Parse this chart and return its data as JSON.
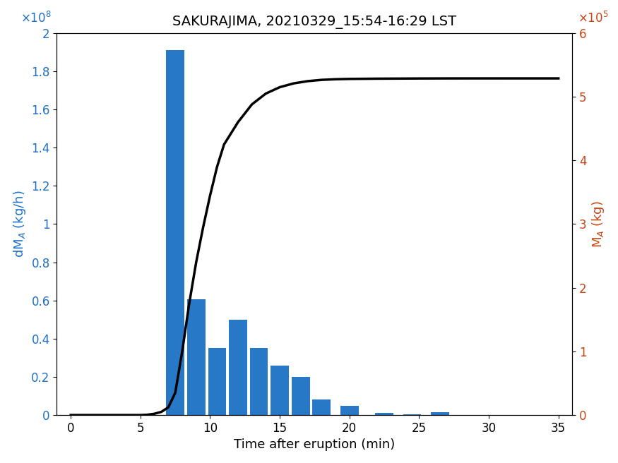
{
  "title": "SAKURAJIMA, 20210329_15:54-16:29 LST",
  "xlabel": "Time after eruption (min)",
  "ylabel_left": "dM$_A$ (kg/h)",
  "ylabel_right": "M$_A$ (kg)",
  "bar_centers": [
    7.5,
    9.0,
    10.5,
    12.0,
    13.5,
    15.0,
    16.5,
    18.0,
    20.0,
    22.5,
    24.5,
    26.5,
    34.0
  ],
  "bar_heights": [
    191000000.0,
    60500000.0,
    35000000.0,
    50000000.0,
    35000000.0,
    26000000.0,
    20000000.0,
    8000000.0,
    5000000.0,
    1200000.0,
    500000.0,
    1500000.0,
    150000.0
  ],
  "bar_width": 1.3,
  "bar_color": "#2878c8",
  "ylim_left": [
    0,
    200000000.0
  ],
  "ylim_right": [
    0,
    600000.0
  ],
  "xlim": [
    -1,
    36
  ],
  "xticks": [
    0,
    5,
    10,
    15,
    20,
    25,
    30,
    35
  ],
  "yticks_left": [
    0,
    20000000.0,
    40000000.0,
    60000000.0,
    80000000.0,
    100000000.0,
    120000000.0,
    140000000.0,
    160000000.0,
    180000000.0,
    200000000.0
  ],
  "yticks_right": [
    0,
    100000.0,
    200000.0,
    300000.0,
    400000.0,
    500000.0,
    600000.0
  ],
  "line_x": [
    0,
    1,
    2,
    3,
    4,
    5,
    5.5,
    6.0,
    6.5,
    7.0,
    7.5,
    8.0,
    8.5,
    9.0,
    9.5,
    10.0,
    10.5,
    11.0,
    12.0,
    13.0,
    14.0,
    15.0,
    16.0,
    17.0,
    18.0,
    19.0,
    20.0,
    21.0,
    22.0,
    23.0,
    24.0,
    25.0,
    26.0,
    27.0,
    28.0,
    29.0,
    30.0,
    31.0,
    32.0,
    33.0,
    34.0,
    35.0
  ],
  "line_y": [
    0,
    0,
    0,
    0,
    0,
    0,
    500,
    2000,
    5000,
    12000,
    35000,
    100000,
    175000,
    240000,
    295000,
    345000,
    390000,
    425000,
    460000,
    488000,
    505000,
    515000,
    521000,
    524500,
    526500,
    527500,
    528000,
    528200,
    528400,
    528500,
    528600,
    528700,
    528750,
    528800,
    528820,
    528830,
    528835,
    528838,
    528840,
    528841,
    528842,
    528842
  ],
  "line_color": "#000000",
  "line_width": 2.5,
  "left_label_color": "#2070c8",
  "right_label_color": "#c84614",
  "title_fontsize": 14,
  "axis_fontsize": 13,
  "tick_fontsize": 12
}
